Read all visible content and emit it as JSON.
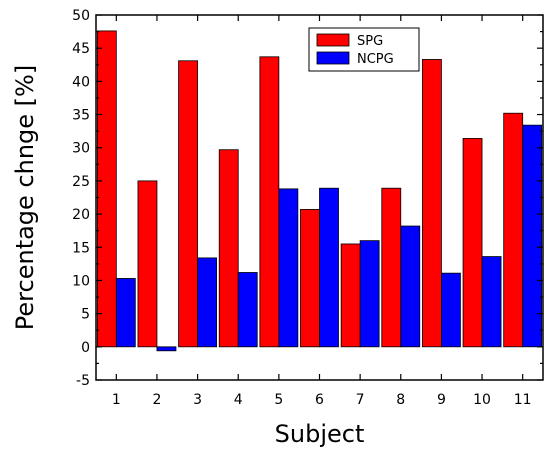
{
  "chart_data": {
    "type": "bar",
    "categories": [
      "1",
      "2",
      "3",
      "4",
      "5",
      "6",
      "7",
      "8",
      "9",
      "10",
      "11"
    ],
    "series": [
      {
        "name": "SPG",
        "color": "#ff0000",
        "values": [
          47.6,
          25.0,
          43.1,
          29.7,
          43.7,
          20.7,
          15.5,
          23.9,
          43.3,
          31.4,
          35.2
        ]
      },
      {
        "name": "NCPG",
        "color": "#0000ff",
        "values": [
          10.3,
          -0.6,
          13.4,
          11.2,
          23.8,
          23.9,
          16.0,
          18.2,
          11.1,
          13.6,
          33.4
        ]
      }
    ],
    "xlabel": "Subject",
    "ylabel": "Percentage chnge [%]",
    "ylim": [
      -5,
      50
    ],
    "yticks": [
      -5,
      0,
      5,
      10,
      15,
      20,
      25,
      30,
      35,
      40,
      45,
      50
    ],
    "grid": false,
    "legend_position": "top-center"
  }
}
